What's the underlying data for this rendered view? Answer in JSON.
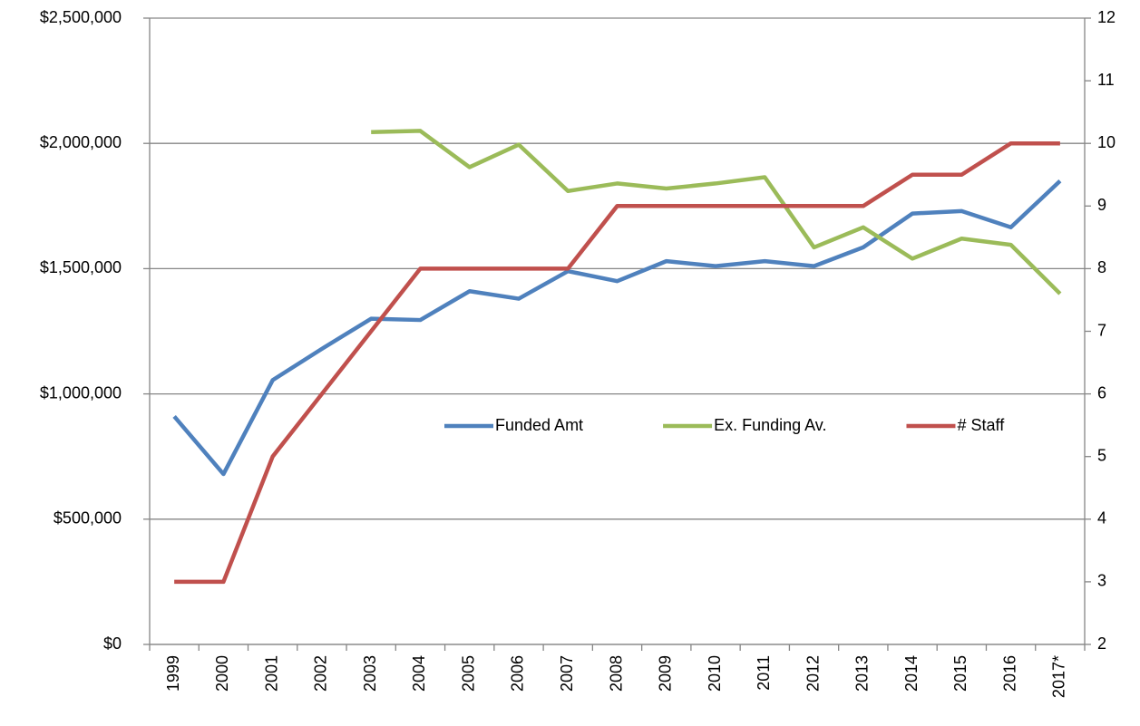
{
  "chart_data": {
    "type": "line",
    "categories": [
      "1999",
      "2000",
      "2001",
      "2002",
      "2003",
      "2004",
      "2005",
      "2006",
      "2007",
      "2008",
      "2009",
      "2010",
      "2011",
      "2012",
      "2013",
      "2014",
      "2015",
      "2016",
      "2017*"
    ],
    "series": [
      {
        "name": "Funded Amt",
        "color": "#4f81bd",
        "values": [
          910000,
          680000,
          1055000,
          1180000,
          1300000,
          1295000,
          1410000,
          1380000,
          1490000,
          1450000,
          1530000,
          1510000,
          1530000,
          1510000,
          1585000,
          1720000,
          1730000,
          1665000,
          1850000
        ]
      },
      {
        "name": "Ex. Funding Av.",
        "color": "#9bbb59",
        "values": [
          null,
          null,
          null,
          null,
          2045000,
          2050000,
          1905000,
          1995000,
          1810000,
          1840000,
          1820000,
          1840000,
          1865000,
          1585000,
          1665000,
          1540000,
          1620000,
          1595000,
          1400000
        ]
      },
      {
        "name": "# Staff",
        "color": "#c0504d",
        "axis": "y2",
        "values": [
          3,
          3,
          5,
          6,
          7,
          8,
          8,
          8,
          8,
          9,
          9,
          9,
          9,
          9,
          9,
          9.5,
          9.5,
          10,
          10
        ]
      }
    ],
    "ylim": [
      0,
      2500000
    ],
    "yticks": [
      {
        "value": 0,
        "label": "$0"
      },
      {
        "value": 500000,
        "label": "$500,000"
      },
      {
        "value": 1000000,
        "label": "$1,000,000"
      },
      {
        "value": 1500000,
        "label": "$1,500,000"
      },
      {
        "value": 2000000,
        "label": "$2,000,000"
      },
      {
        "value": 2500000,
        "label": "$2,500,000"
      }
    ],
    "y2lim": [
      2,
      12
    ],
    "y2ticks": [
      2,
      3,
      4,
      5,
      6,
      7,
      8,
      9,
      10,
      11,
      12
    ],
    "grid": true,
    "legend": "center"
  }
}
